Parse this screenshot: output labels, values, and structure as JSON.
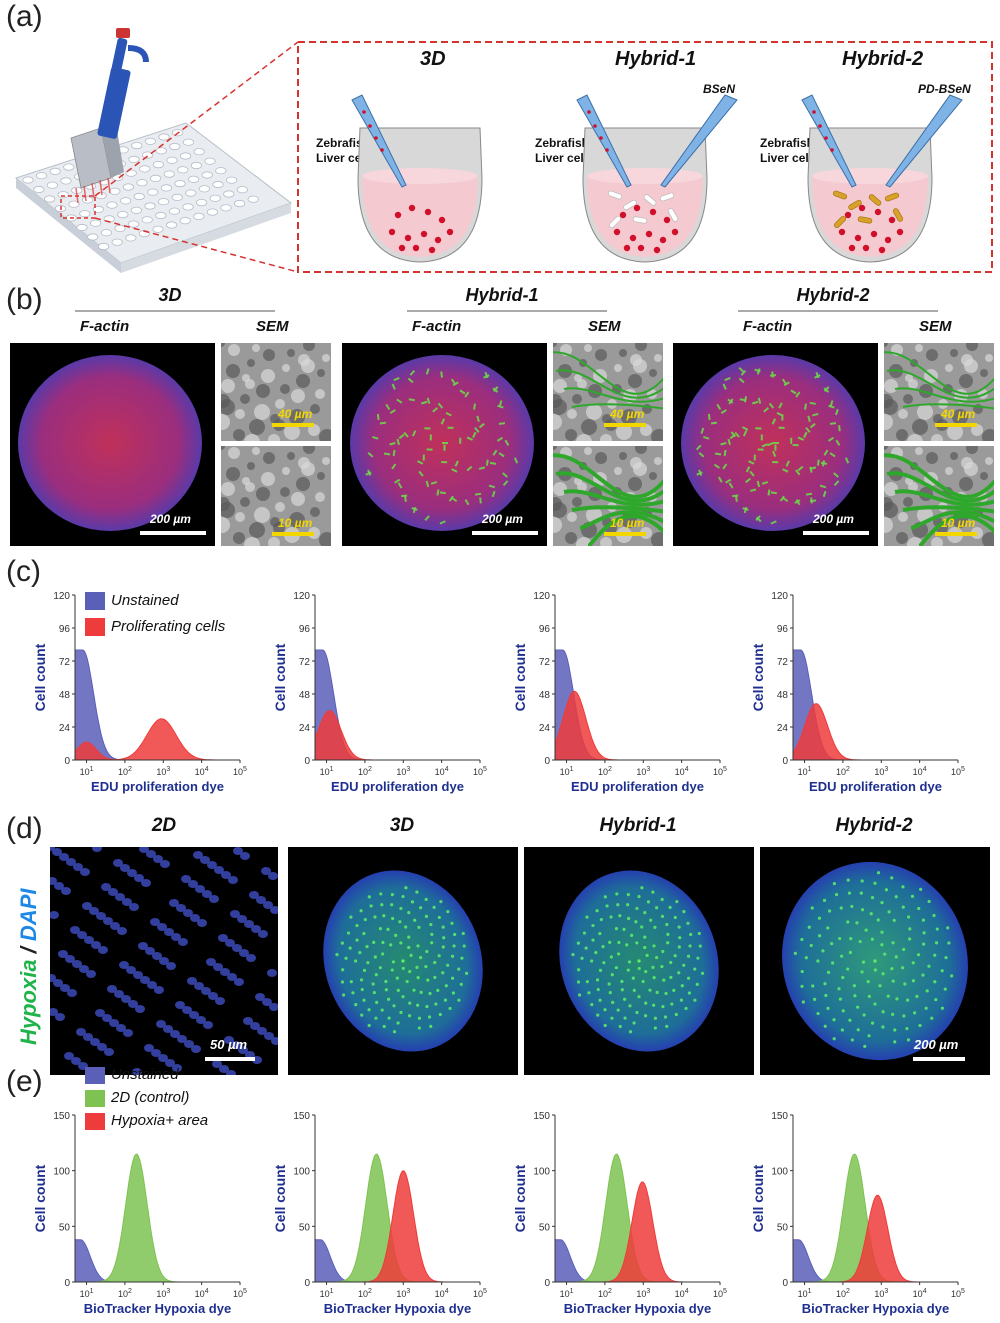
{
  "panel_a": {
    "label": "(a)",
    "conditions": [
      {
        "title": "3D",
        "cell_label_1": "Zebrafish",
        "cell_label_2": "Liver cells",
        "material": ""
      },
      {
        "title": "Hybrid-1",
        "cell_label_1": "Zebrafish",
        "cell_label_2": "Liver cells",
        "material": "BSeN"
      },
      {
        "title": "Hybrid-2",
        "cell_label_1": "Zebrafish",
        "cell_label_2": "Liver cells",
        "material": "PD-BSeN"
      }
    ]
  },
  "panel_b": {
    "label": "(b)",
    "groups": [
      {
        "title": "3D",
        "sub1": "F-actin",
        "sub2": "SEM",
        "scale_main": "200 µm",
        "scale_sem1": "40 µm",
        "scale_sem2": "10 µm"
      },
      {
        "title": "Hybrid-1",
        "sub1": "F-actin",
        "sub2": "SEM",
        "scale_main": "200 µm",
        "scale_sem1": "40 µm",
        "scale_sem2": "10 µm"
      },
      {
        "title": "Hybrid-2",
        "sub1": "F-actin",
        "sub2": "SEM",
        "scale_main": "200 µm",
        "scale_sem1": "40 µm",
        "scale_sem2": "10 µm"
      }
    ]
  },
  "panel_c": {
    "label": "(c)",
    "legend": [
      "Unstained",
      "Proliferating cells"
    ]
  },
  "panel_d": {
    "label": "(d)",
    "side_label_1": "Hypoxia",
    "side_label_sep": " / ",
    "side_label_2": "DAPI",
    "titles": [
      "2D",
      "3D",
      "Hybrid-1",
      "Hybrid-2"
    ],
    "scale_left": "50 µm",
    "scale_right": "200 µm"
  },
  "panel_e": {
    "label": "(e)",
    "legend": [
      "Unstained",
      "2D (control)",
      "Hypoxia+ area"
    ]
  },
  "colors": {
    "unstained": "#5a5fb8",
    "red": "#ee3b3b",
    "green": "#7ec352",
    "axis_text": "#1f2f8f",
    "frame_red": "#d6332f"
  },
  "chart_data": [
    {
      "type": "area",
      "panel": "c",
      "xlabel": "EDU proliferation dye",
      "ylabel": "Cell count",
      "xscale": "log",
      "xlim": [
        5,
        100000
      ],
      "ylim": [
        0,
        120
      ],
      "yticks": [
        0,
        24,
        48,
        72,
        96,
        120
      ],
      "xticks": [
        "10^1",
        "10^2",
        "10^3",
        "10^4",
        "10^5"
      ],
      "series": [
        {
          "name": "Unstained",
          "peak_x": 8,
          "peak_y": 80,
          "width": 0.28
        },
        {
          "name": "Proliferating cells",
          "peak_x": 900,
          "peak_y": 30,
          "width": 0.38,
          "low_x": 10,
          "low_y": 13
        }
      ]
    },
    {
      "type": "area",
      "panel": "c",
      "xlabel": "EDU proliferation dye",
      "ylabel": "Cell count",
      "xscale": "log",
      "xlim": [
        5,
        100000
      ],
      "ylim": [
        0,
        120
      ],
      "yticks": [
        0,
        24,
        48,
        72,
        96,
        120
      ],
      "xticks": [
        "10^1",
        "10^2",
        "10^3",
        "10^4",
        "10^5"
      ],
      "series": [
        {
          "name": "Unstained",
          "peak_x": 8,
          "peak_y": 80,
          "width": 0.28
        },
        {
          "name": "Proliferating cells",
          "peak_x": 12,
          "peak_y": 36,
          "width": 0.3
        }
      ]
    },
    {
      "type": "area",
      "panel": "c",
      "xlabel": "EDU proliferation dye",
      "ylabel": "Cell count",
      "xscale": "log",
      "xlim": [
        5,
        100000
      ],
      "ylim": [
        0,
        120
      ],
      "yticks": [
        0,
        24,
        48,
        72,
        96,
        120
      ],
      "xticks": [
        "10^1",
        "10^2",
        "10^3",
        "10^4",
        "10^5"
      ],
      "series": [
        {
          "name": "Unstained",
          "peak_x": 8,
          "peak_y": 80,
          "width": 0.28
        },
        {
          "name": "Proliferating cells",
          "peak_x": 16,
          "peak_y": 50,
          "width": 0.3
        }
      ]
    },
    {
      "type": "area",
      "panel": "c",
      "xlabel": "EDU proliferation dye",
      "ylabel": "Cell count",
      "xscale": "log",
      "xlim": [
        5,
        100000
      ],
      "ylim": [
        0,
        120
      ],
      "yticks": [
        0,
        24,
        48,
        72,
        96,
        120
      ],
      "xticks": [
        "10^1",
        "10^2",
        "10^3",
        "10^4",
        "10^5"
      ],
      "series": [
        {
          "name": "Unstained",
          "peak_x": 8,
          "peak_y": 80,
          "width": 0.28
        },
        {
          "name": "Proliferating cells",
          "peak_x": 20,
          "peak_y": 41,
          "width": 0.3
        }
      ]
    },
    {
      "type": "area",
      "panel": "e",
      "xlabel": "BioTracker Hypoxia dye",
      "ylabel": "Cell count",
      "xscale": "log",
      "xlim": [
        5,
        100000
      ],
      "ylim": [
        0,
        150
      ],
      "yticks": [
        0,
        50,
        100,
        150
      ],
      "xticks": [
        "10^1",
        "10^2",
        "10^3",
        "10^4",
        "10^5"
      ],
      "series": [
        {
          "name": "Unstained",
          "peak_x": 7,
          "peak_y": 38,
          "width": 0.25
        },
        {
          "name": "2D (control)",
          "peak_x": 200,
          "peak_y": 115,
          "width": 0.28
        }
      ]
    },
    {
      "type": "area",
      "panel": "e",
      "xlabel": "BioTracker Hypoxia dye",
      "ylabel": "Cell count",
      "xscale": "log",
      "xlim": [
        5,
        100000
      ],
      "ylim": [
        0,
        150
      ],
      "yticks": [
        0,
        50,
        100,
        150
      ],
      "xticks": [
        "10^1",
        "10^2",
        "10^3",
        "10^4",
        "10^5"
      ],
      "series": [
        {
          "name": "Unstained",
          "peak_x": 7,
          "peak_y": 38,
          "width": 0.25
        },
        {
          "name": "2D (control)",
          "peak_x": 200,
          "peak_y": 115,
          "width": 0.28
        },
        {
          "name": "Hypoxia+ area",
          "peak_x": 1000,
          "peak_y": 100,
          "width": 0.27
        }
      ]
    },
    {
      "type": "area",
      "panel": "e",
      "xlabel": "BioTracker Hypoxia dye",
      "ylabel": "Cell count",
      "xscale": "log",
      "xlim": [
        5,
        100000
      ],
      "ylim": [
        0,
        150
      ],
      "yticks": [
        0,
        50,
        100,
        150
      ],
      "xticks": [
        "10^1",
        "10^2",
        "10^3",
        "10^4",
        "10^5"
      ],
      "series": [
        {
          "name": "Unstained",
          "peak_x": 7,
          "peak_y": 38,
          "width": 0.25
        },
        {
          "name": "2D (control)",
          "peak_x": 200,
          "peak_y": 115,
          "width": 0.28
        },
        {
          "name": "Hypoxia+ area",
          "peak_x": 950,
          "peak_y": 90,
          "width": 0.27
        }
      ]
    },
    {
      "type": "area",
      "panel": "e",
      "xlabel": "BioTracker Hypoxia dye",
      "ylabel": "Cell count",
      "xscale": "log",
      "xlim": [
        5,
        100000
      ],
      "ylim": [
        0,
        150
      ],
      "yticks": [
        0,
        50,
        100,
        150
      ],
      "xticks": [
        "10^1",
        "10^2",
        "10^3",
        "10^4",
        "10^5"
      ],
      "series": [
        {
          "name": "Unstained",
          "peak_x": 7,
          "peak_y": 38,
          "width": 0.25
        },
        {
          "name": "2D (control)",
          "peak_x": 200,
          "peak_y": 115,
          "width": 0.28
        },
        {
          "name": "Hypoxia+ area",
          "peak_x": 800,
          "peak_y": 78,
          "width": 0.27
        }
      ]
    }
  ]
}
